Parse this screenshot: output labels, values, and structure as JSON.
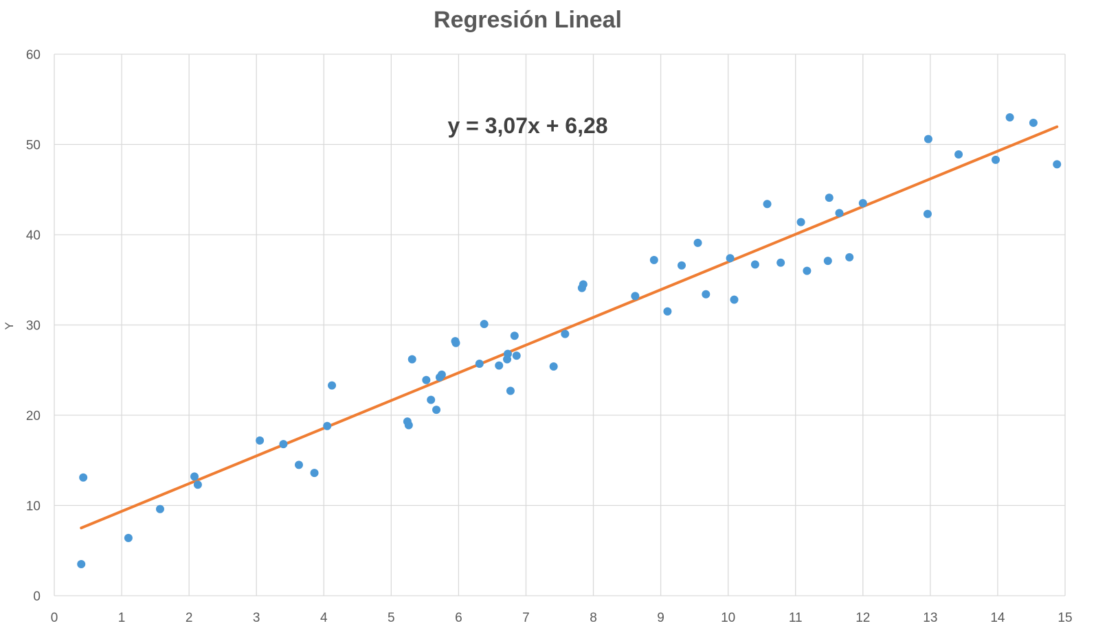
{
  "chart_data": {
    "type": "scatter",
    "title": "Regresión Lineal",
    "xlabel": "",
    "ylabel": "Y",
    "xlim": [
      0,
      15
    ],
    "ylim": [
      0,
      60
    ],
    "xticks": [
      "0",
      "1",
      "2",
      "3",
      "4",
      "5",
      "6",
      "7",
      "8",
      "9",
      "10",
      "11",
      "12",
      "13",
      "14",
      "15"
    ],
    "yticks": [
      "0",
      "10",
      "20",
      "30",
      "40",
      "50",
      "60"
    ],
    "grid": true,
    "legend": "none",
    "point_color": "#4a98d6",
    "line_color": "#ef7d33",
    "series": [
      {
        "values": [
          [
            0.4,
            3.5
          ],
          [
            0.43,
            13.1
          ],
          [
            1.1,
            6.4
          ],
          [
            1.57,
            9.6
          ],
          [
            2.08,
            13.2
          ],
          [
            2.13,
            12.3
          ],
          [
            3.05,
            17.2
          ],
          [
            3.4,
            16.8
          ],
          [
            3.63,
            14.5
          ],
          [
            3.86,
            13.6
          ],
          [
            4.05,
            18.8
          ],
          [
            4.12,
            23.3
          ],
          [
            5.24,
            19.3
          ],
          [
            5.26,
            18.9
          ],
          [
            5.31,
            26.2
          ],
          [
            5.52,
            23.9
          ],
          [
            5.59,
            21.7
          ],
          [
            5.67,
            20.6
          ],
          [
            5.72,
            24.2
          ],
          [
            5.75,
            24.5
          ],
          [
            5.95,
            28.2
          ],
          [
            5.96,
            28.0
          ],
          [
            6.31,
            25.7
          ],
          [
            6.38,
            30.1
          ],
          [
            6.6,
            25.5
          ],
          [
            6.72,
            26.2
          ],
          [
            6.73,
            26.8
          ],
          [
            6.77,
            22.7
          ],
          [
            6.83,
            28.8
          ],
          [
            6.86,
            26.6
          ],
          [
            7.41,
            25.4
          ],
          [
            7.58,
            29.0
          ],
          [
            7.83,
            34.1
          ],
          [
            7.85,
            34.5
          ],
          [
            8.62,
            33.2
          ],
          [
            8.9,
            37.2
          ],
          [
            9.1,
            31.5
          ],
          [
            9.31,
            36.6
          ],
          [
            9.55,
            39.1
          ],
          [
            9.67,
            33.4
          ],
          [
            10.03,
            37.4
          ],
          [
            10.09,
            32.8
          ],
          [
            10.4,
            36.7
          ],
          [
            10.58,
            43.4
          ],
          [
            10.78,
            36.9
          ],
          [
            11.08,
            41.4
          ],
          [
            11.17,
            36.0
          ],
          [
            11.48,
            37.1
          ],
          [
            11.5,
            44.1
          ],
          [
            11.65,
            42.4
          ],
          [
            11.8,
            37.5
          ],
          [
            12.0,
            43.5
          ],
          [
            12.96,
            42.3
          ],
          [
            12.97,
            50.6
          ],
          [
            13.42,
            48.9
          ],
          [
            13.97,
            48.3
          ],
          [
            14.18,
            53.0
          ],
          [
            14.53,
            52.4
          ],
          [
            14.88,
            47.8
          ]
        ]
      }
    ],
    "trendline": {
      "slope": 3.07,
      "intercept": 6.28,
      "x_range": [
        0.4,
        14.88
      ],
      "equation_label": "y = 3,07x + 6,28"
    }
  }
}
